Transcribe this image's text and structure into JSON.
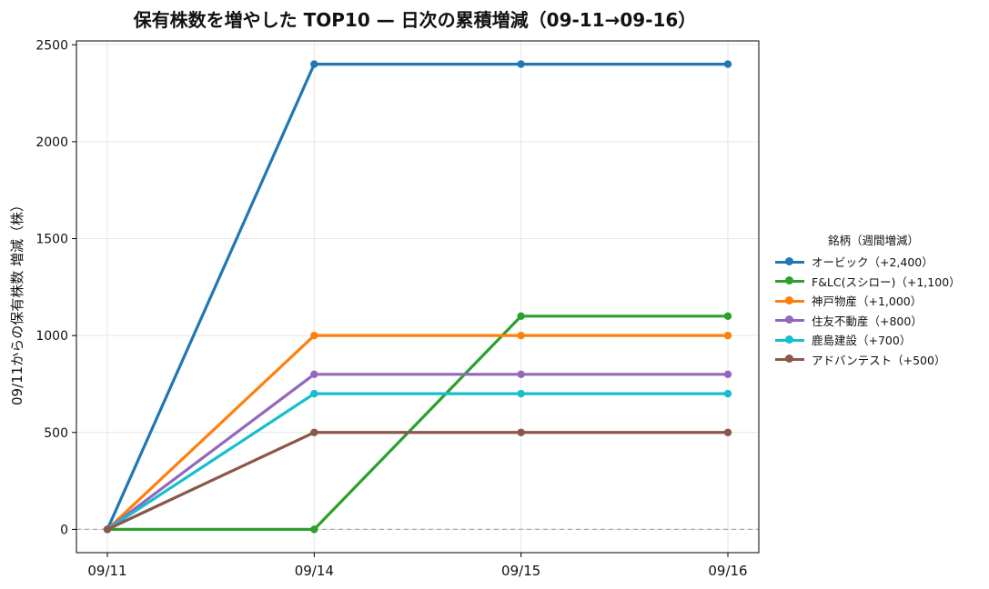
{
  "chart_data": {
    "type": "line",
    "title": "保有株数を増やした TOP10 — 日次の累積増減（09-11→09-16）",
    "xlabel": "",
    "ylabel": "09/11からの保有株数 増減（株）",
    "x": [
      "09/11",
      "09/14",
      "09/15",
      "09/16"
    ],
    "ylim": [
      -120,
      2520
    ],
    "yticks": [
      0,
      500,
      1000,
      1500,
      2000,
      2500
    ],
    "grid": true,
    "zero_line": "dashed",
    "legend": {
      "title": "銘柄（週間増減）",
      "placement": "right"
    },
    "series": [
      {
        "name": "オービック（+2,400）",
        "color": "#1f77b4",
        "values": [
          0,
          2400,
          2400,
          2400
        ]
      },
      {
        "name": "F&LC(スシロー)（+1,100）",
        "color": "#2ca02c",
        "values": [
          0,
          0,
          1100,
          1100
        ]
      },
      {
        "name": "神戸物産（+1,000）",
        "color": "#ff7f0e",
        "values": [
          0,
          1000,
          1000,
          1000
        ]
      },
      {
        "name": "住友不動産（+800）",
        "color": "#9467bd",
        "values": [
          0,
          800,
          800,
          800
        ]
      },
      {
        "name": "鹿島建設（+700）",
        "color": "#17becf",
        "values": [
          0,
          700,
          700,
          700
        ]
      },
      {
        "name": "アドバンテスト（+500）",
        "color": "#8c564b",
        "values": [
          0,
          500,
          500,
          500
        ]
      }
    ]
  }
}
